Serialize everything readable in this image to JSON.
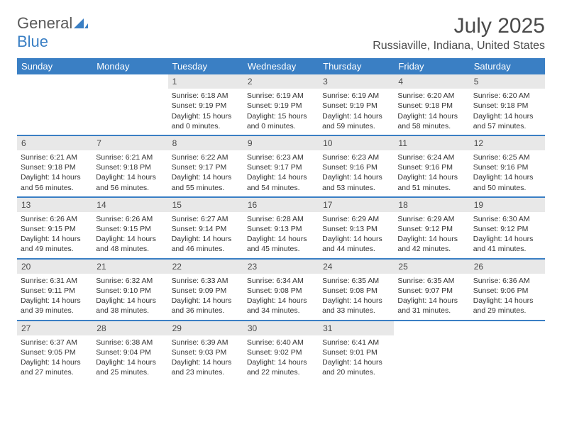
{
  "logo": {
    "part1": "General",
    "part2": "Blue"
  },
  "title": "July 2025",
  "location": "Russiaville, Indiana, United States",
  "colors": {
    "header_bg": "#3a7fc4",
    "header_text": "#ffffff",
    "daynum_bg": "#e8e8e8",
    "border": "#3a7fc4",
    "text": "#333333"
  },
  "weekdays": [
    "Sunday",
    "Monday",
    "Tuesday",
    "Wednesday",
    "Thursday",
    "Friday",
    "Saturday"
  ],
  "weeks": [
    [
      {
        "empty": true
      },
      {
        "empty": true
      },
      {
        "day": "1",
        "sunrise": "Sunrise: 6:18 AM",
        "sunset": "Sunset: 9:19 PM",
        "daylight1": "Daylight: 15 hours",
        "daylight2": "and 0 minutes."
      },
      {
        "day": "2",
        "sunrise": "Sunrise: 6:19 AM",
        "sunset": "Sunset: 9:19 PM",
        "daylight1": "Daylight: 15 hours",
        "daylight2": "and 0 minutes."
      },
      {
        "day": "3",
        "sunrise": "Sunrise: 6:19 AM",
        "sunset": "Sunset: 9:19 PM",
        "daylight1": "Daylight: 14 hours",
        "daylight2": "and 59 minutes."
      },
      {
        "day": "4",
        "sunrise": "Sunrise: 6:20 AM",
        "sunset": "Sunset: 9:18 PM",
        "daylight1": "Daylight: 14 hours",
        "daylight2": "and 58 minutes."
      },
      {
        "day": "5",
        "sunrise": "Sunrise: 6:20 AM",
        "sunset": "Sunset: 9:18 PM",
        "daylight1": "Daylight: 14 hours",
        "daylight2": "and 57 minutes."
      }
    ],
    [
      {
        "day": "6",
        "sunrise": "Sunrise: 6:21 AM",
        "sunset": "Sunset: 9:18 PM",
        "daylight1": "Daylight: 14 hours",
        "daylight2": "and 56 minutes."
      },
      {
        "day": "7",
        "sunrise": "Sunrise: 6:21 AM",
        "sunset": "Sunset: 9:18 PM",
        "daylight1": "Daylight: 14 hours",
        "daylight2": "and 56 minutes."
      },
      {
        "day": "8",
        "sunrise": "Sunrise: 6:22 AM",
        "sunset": "Sunset: 9:17 PM",
        "daylight1": "Daylight: 14 hours",
        "daylight2": "and 55 minutes."
      },
      {
        "day": "9",
        "sunrise": "Sunrise: 6:23 AM",
        "sunset": "Sunset: 9:17 PM",
        "daylight1": "Daylight: 14 hours",
        "daylight2": "and 54 minutes."
      },
      {
        "day": "10",
        "sunrise": "Sunrise: 6:23 AM",
        "sunset": "Sunset: 9:16 PM",
        "daylight1": "Daylight: 14 hours",
        "daylight2": "and 53 minutes."
      },
      {
        "day": "11",
        "sunrise": "Sunrise: 6:24 AM",
        "sunset": "Sunset: 9:16 PM",
        "daylight1": "Daylight: 14 hours",
        "daylight2": "and 51 minutes."
      },
      {
        "day": "12",
        "sunrise": "Sunrise: 6:25 AM",
        "sunset": "Sunset: 9:16 PM",
        "daylight1": "Daylight: 14 hours",
        "daylight2": "and 50 minutes."
      }
    ],
    [
      {
        "day": "13",
        "sunrise": "Sunrise: 6:26 AM",
        "sunset": "Sunset: 9:15 PM",
        "daylight1": "Daylight: 14 hours",
        "daylight2": "and 49 minutes."
      },
      {
        "day": "14",
        "sunrise": "Sunrise: 6:26 AM",
        "sunset": "Sunset: 9:15 PM",
        "daylight1": "Daylight: 14 hours",
        "daylight2": "and 48 minutes."
      },
      {
        "day": "15",
        "sunrise": "Sunrise: 6:27 AM",
        "sunset": "Sunset: 9:14 PM",
        "daylight1": "Daylight: 14 hours",
        "daylight2": "and 46 minutes."
      },
      {
        "day": "16",
        "sunrise": "Sunrise: 6:28 AM",
        "sunset": "Sunset: 9:13 PM",
        "daylight1": "Daylight: 14 hours",
        "daylight2": "and 45 minutes."
      },
      {
        "day": "17",
        "sunrise": "Sunrise: 6:29 AM",
        "sunset": "Sunset: 9:13 PM",
        "daylight1": "Daylight: 14 hours",
        "daylight2": "and 44 minutes."
      },
      {
        "day": "18",
        "sunrise": "Sunrise: 6:29 AM",
        "sunset": "Sunset: 9:12 PM",
        "daylight1": "Daylight: 14 hours",
        "daylight2": "and 42 minutes."
      },
      {
        "day": "19",
        "sunrise": "Sunrise: 6:30 AM",
        "sunset": "Sunset: 9:12 PM",
        "daylight1": "Daylight: 14 hours",
        "daylight2": "and 41 minutes."
      }
    ],
    [
      {
        "day": "20",
        "sunrise": "Sunrise: 6:31 AM",
        "sunset": "Sunset: 9:11 PM",
        "daylight1": "Daylight: 14 hours",
        "daylight2": "and 39 minutes."
      },
      {
        "day": "21",
        "sunrise": "Sunrise: 6:32 AM",
        "sunset": "Sunset: 9:10 PM",
        "daylight1": "Daylight: 14 hours",
        "daylight2": "and 38 minutes."
      },
      {
        "day": "22",
        "sunrise": "Sunrise: 6:33 AM",
        "sunset": "Sunset: 9:09 PM",
        "daylight1": "Daylight: 14 hours",
        "daylight2": "and 36 minutes."
      },
      {
        "day": "23",
        "sunrise": "Sunrise: 6:34 AM",
        "sunset": "Sunset: 9:08 PM",
        "daylight1": "Daylight: 14 hours",
        "daylight2": "and 34 minutes."
      },
      {
        "day": "24",
        "sunrise": "Sunrise: 6:35 AM",
        "sunset": "Sunset: 9:08 PM",
        "daylight1": "Daylight: 14 hours",
        "daylight2": "and 33 minutes."
      },
      {
        "day": "25",
        "sunrise": "Sunrise: 6:35 AM",
        "sunset": "Sunset: 9:07 PM",
        "daylight1": "Daylight: 14 hours",
        "daylight2": "and 31 minutes."
      },
      {
        "day": "26",
        "sunrise": "Sunrise: 6:36 AM",
        "sunset": "Sunset: 9:06 PM",
        "daylight1": "Daylight: 14 hours",
        "daylight2": "and 29 minutes."
      }
    ],
    [
      {
        "day": "27",
        "sunrise": "Sunrise: 6:37 AM",
        "sunset": "Sunset: 9:05 PM",
        "daylight1": "Daylight: 14 hours",
        "daylight2": "and 27 minutes."
      },
      {
        "day": "28",
        "sunrise": "Sunrise: 6:38 AM",
        "sunset": "Sunset: 9:04 PM",
        "daylight1": "Daylight: 14 hours",
        "daylight2": "and 25 minutes."
      },
      {
        "day": "29",
        "sunrise": "Sunrise: 6:39 AM",
        "sunset": "Sunset: 9:03 PM",
        "daylight1": "Daylight: 14 hours",
        "daylight2": "and 23 minutes."
      },
      {
        "day": "30",
        "sunrise": "Sunrise: 6:40 AM",
        "sunset": "Sunset: 9:02 PM",
        "daylight1": "Daylight: 14 hours",
        "daylight2": "and 22 minutes."
      },
      {
        "day": "31",
        "sunrise": "Sunrise: 6:41 AM",
        "sunset": "Sunset: 9:01 PM",
        "daylight1": "Daylight: 14 hours",
        "daylight2": "and 20 minutes."
      },
      {
        "empty": true
      },
      {
        "empty": true
      }
    ]
  ]
}
